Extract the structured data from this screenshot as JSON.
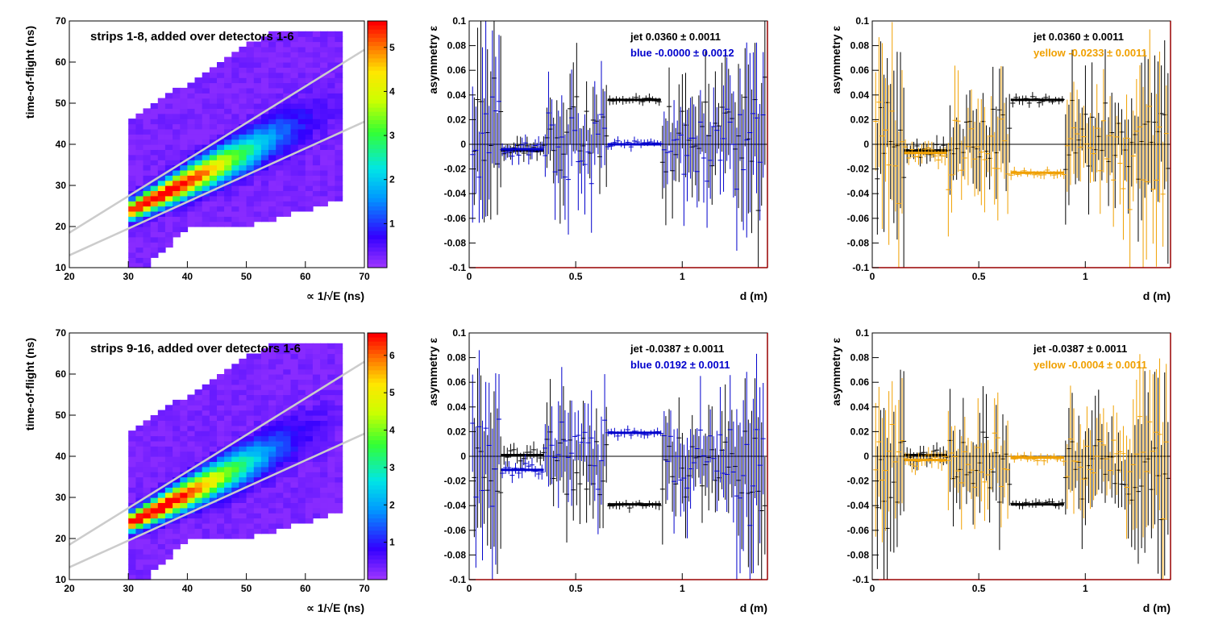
{
  "colors": {
    "jet": "#000000",
    "blue": "#0000cc",
    "yellow": "#f0a000",
    "frame_red": "#990000",
    "band_lines": "#cccccc",
    "background_2d": "#9933ff"
  },
  "chart_data": [
    {
      "type": "heatmap",
      "panel": "top-left",
      "title": "strips 1-8, added over detectors 1-6",
      "xlabel": "∝ 1/√E (ns)",
      "ylabel": "time-of-flight (ns)",
      "xlim": [
        20,
        70
      ],
      "ylim": [
        10,
        70
      ],
      "xticks": [
        "20",
        "30",
        "40",
        "50",
        "60",
        "70"
      ],
      "yticks": [
        "10",
        "20",
        "30",
        "40",
        "50",
        "60",
        "70"
      ],
      "colorbar_ticks": [
        "1",
        "2",
        "3",
        "4",
        "5"
      ],
      "peak": [
        36,
        28
      ],
      "band_lines": [
        {
          "x": [
            20,
            70
          ],
          "y": [
            18.5,
            63
          ]
        },
        {
          "x": [
            20,
            70
          ],
          "y": [
            13,
            45.5
          ]
        }
      ]
    },
    {
      "type": "scatter",
      "panel": "top-middle",
      "xlabel": "d (m)",
      "ylabel": "asymmetry ε",
      "xlim": [
        0,
        1.4
      ],
      "ylim": [
        -0.1,
        0.1
      ],
      "xticks": [
        "0",
        "0.5",
        "1"
      ],
      "yticks": [
        "-0.1",
        "-0.08",
        "-0.06",
        "-0.04",
        "-0.02",
        "0",
        "0.02",
        "0.04",
        "0.06",
        "0.08",
        "0.1"
      ],
      "legend": [
        {
          "text": "jet  0.0360 ± 0.0011",
          "color": "#000000"
        },
        {
          "text": "blue -0.0000 ± 0.0012",
          "color": "#0000cc"
        }
      ],
      "series": [
        {
          "color": "#000000",
          "fits": [
            {
              "x": [
                0.15,
                0.35
              ],
              "y": -0.005
            },
            {
              "x": [
                0.65,
                0.9
              ],
              "y": 0.036
            }
          ]
        },
        {
          "color": "#0000cc",
          "fits": [
            {
              "x": [
                0.15,
                0.35
              ],
              "y": -0.004
            },
            {
              "x": [
                0.65,
                0.9
              ],
              "y": 0.0
            }
          ]
        }
      ]
    },
    {
      "type": "scatter",
      "panel": "top-right",
      "xlabel": "d (m)",
      "ylabel": "asymmetry ε",
      "xlim": [
        0,
        1.4
      ],
      "ylim": [
        -0.1,
        0.1
      ],
      "xticks": [
        "0",
        "0.5",
        "1"
      ],
      "yticks": [
        "-0.1",
        "-0.08",
        "-0.06",
        "-0.04",
        "-0.02",
        "0",
        "0.02",
        "0.04",
        "0.06",
        "0.08",
        "0.1"
      ],
      "legend": [
        {
          "text": "jet  0.0360 ± 0.0011",
          "color": "#000000"
        },
        {
          "text": "yellow -0.0233 ± 0.0011",
          "color": "#f0a000"
        }
      ],
      "series": [
        {
          "color": "#000000",
          "fits": [
            {
              "x": [
                0.15,
                0.35
              ],
              "y": -0.005
            },
            {
              "x": [
                0.65,
                0.9
              ],
              "y": 0.036
            }
          ]
        },
        {
          "color": "#f0a000",
          "fits": [
            {
              "x": [
                0.15,
                0.35
              ],
              "y": -0.007
            },
            {
              "x": [
                0.65,
                0.9
              ],
              "y": -0.023
            }
          ]
        }
      ]
    },
    {
      "type": "heatmap",
      "panel": "bottom-left",
      "title": "strips 9-16, added over detectors 1-6",
      "xlabel": "∝ 1/√E (ns)",
      "ylabel": "time-of-flight (ns)",
      "xlim": [
        20,
        70
      ],
      "ylim": [
        10,
        70
      ],
      "xticks": [
        "20",
        "30",
        "40",
        "50",
        "60",
        "70"
      ],
      "yticks": [
        "10",
        "20",
        "30",
        "40",
        "50",
        "60",
        "70"
      ],
      "colorbar_ticks": [
        "1",
        "2",
        "3",
        "4",
        "5",
        "6"
      ],
      "peak": [
        35,
        27
      ],
      "band_lines": [
        {
          "x": [
            20,
            70
          ],
          "y": [
            18.5,
            63
          ]
        },
        {
          "x": [
            20,
            70
          ],
          "y": [
            13,
            45.5
          ]
        }
      ]
    },
    {
      "type": "scatter",
      "panel": "bottom-middle",
      "xlabel": "d (m)",
      "ylabel": "asymmetry ε",
      "xlim": [
        0,
        1.4
      ],
      "ylim": [
        -0.1,
        0.1
      ],
      "xticks": [
        "0",
        "0.5",
        "1"
      ],
      "yticks": [
        "-0.1",
        "-0.08",
        "-0.06",
        "-0.04",
        "-0.02",
        "0",
        "0.02",
        "0.04",
        "0.06",
        "0.08",
        "0.1"
      ],
      "legend": [
        {
          "text": "jet -0.0387 ± 0.0011",
          "color": "#000000"
        },
        {
          "text": "blue  0.0192 ± 0.0011",
          "color": "#0000cc"
        }
      ],
      "series": [
        {
          "color": "#000000",
          "fits": [
            {
              "x": [
                0.15,
                0.35
              ],
              "y": 0.001
            },
            {
              "x": [
                0.65,
                0.9
              ],
              "y": -0.039
            }
          ]
        },
        {
          "color": "#0000cc",
          "fits": [
            {
              "x": [
                0.15,
                0.35
              ],
              "y": -0.011
            },
            {
              "x": [
                0.65,
                0.9
              ],
              "y": 0.019
            }
          ]
        }
      ]
    },
    {
      "type": "scatter",
      "panel": "bottom-right",
      "xlabel": "d (m)",
      "ylabel": "asymmetry ε",
      "xlim": [
        0,
        1.4
      ],
      "ylim": [
        -0.1,
        0.1
      ],
      "xticks": [
        "0",
        "0.5",
        "1"
      ],
      "yticks": [
        "-0.1",
        "-0.08",
        "-0.06",
        "-0.04",
        "-0.02",
        "0",
        "0.02",
        "0.04",
        "0.06",
        "0.08",
        "0.1"
      ],
      "legend": [
        {
          "text": "jet -0.0387 ± 0.0011",
          "color": "#000000"
        },
        {
          "text": "yellow -0.0004 ± 0.0011",
          "color": "#f0a000"
        }
      ],
      "series": [
        {
          "color": "#000000",
          "fits": [
            {
              "x": [
                0.15,
                0.35
              ],
              "y": 0.001
            },
            {
              "x": [
                0.65,
                0.9
              ],
              "y": -0.039
            }
          ]
        },
        {
          "color": "#f0a000",
          "fits": [
            {
              "x": [
                0.15,
                0.35
              ],
              "y": -0.003
            },
            {
              "x": [
                0.65,
                0.9
              ],
              "y": -0.001
            }
          ]
        }
      ]
    }
  ]
}
